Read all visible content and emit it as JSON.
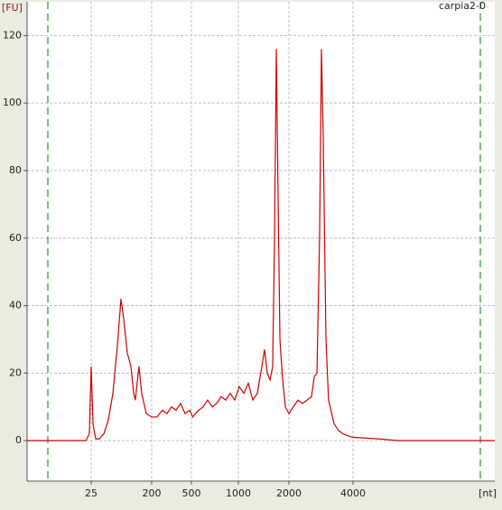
{
  "chart_data": {
    "type": "line",
    "title": "carpia2-0",
    "ylabel": "[FU]",
    "xlabel": "[nt]",
    "x": [
      3,
      21,
      23.5,
      25,
      26.6,
      29.2,
      33,
      38.6,
      45,
      52.7,
      61.5,
      69.6,
      76.4,
      86.5,
      98,
      107.6,
      114,
      129,
      142,
      166,
      200,
      226,
      256,
      285,
      316,
      351,
      389,
      432,
      480,
      510,
      556,
      594,
      635,
      680,
      726,
      776,
      830,
      887,
      948,
      1012,
      1077,
      1146,
      1219,
      1297,
      1380,
      1432,
      1486,
      1543,
      1601,
      1642,
      1683,
      1726,
      1768,
      1835,
      1905,
      2000,
      2099,
      2205,
      2316,
      2432,
      2553,
      2631,
      2707,
      2786,
      2843,
      2898,
      2985,
      3070,
      3259,
      3420,
      3590,
      3962,
      5285,
      6400,
      18000
    ],
    "series": [
      {
        "name": "carpia2-0",
        "color": "#cc0000",
        "values": [
          0,
          0,
          2,
          22,
          5,
          0.5,
          0.5,
          2,
          6,
          14,
          28,
          42,
          36,
          26,
          22,
          14,
          12,
          22,
          14,
          8,
          7,
          7,
          9,
          8,
          10,
          9,
          11,
          8,
          9,
          7,
          9,
          10,
          12,
          10,
          11,
          13,
          12,
          14,
          12,
          16,
          14,
          17,
          12,
          14,
          22,
          27,
          20,
          18,
          22,
          60,
          116,
          70,
          30,
          18,
          10,
          8,
          10,
          12,
          11,
          12,
          13,
          19,
          20,
          60,
          116,
          90,
          30,
          12,
          5,
          3,
          2,
          1,
          0.5,
          0,
          0
        ]
      }
    ],
    "xlim": [
      3,
      18000
    ],
    "xticks": [
      25,
      200,
      500,
      1000,
      2000,
      4000
    ],
    "ylim": [
      -12,
      130
    ],
    "yticks": [
      0,
      20,
      40,
      60,
      80,
      100,
      120
    ],
    "grid": true
  }
}
